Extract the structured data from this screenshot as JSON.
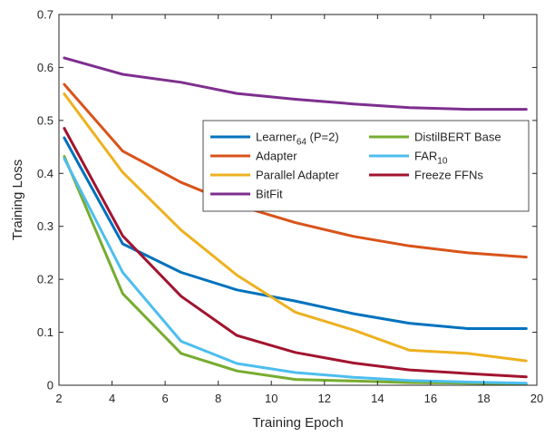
{
  "chart_data": {
    "type": "line",
    "xlabel": "Training Epoch",
    "ylabel": "Training Loss",
    "xlim": [
      2,
      20
    ],
    "ylim": [
      0,
      0.7
    ],
    "xticks": [
      "2",
      "4",
      "6",
      "8",
      "10",
      "12",
      "14",
      "16",
      "18",
      "20"
    ],
    "yticks": [
      "0",
      "0.1",
      "0.2",
      "0.3",
      "0.4",
      "0.5",
      "0.6",
      "0.7"
    ],
    "grid": false,
    "legend_position": "center-right",
    "series": [
      {
        "name": "Learner",
        "name_sub": "64",
        "name_suffix": " (P=2)",
        "color": "#0072BD",
        "x": [
          2.2,
          4.4,
          6.6,
          8.7,
          10.9,
          13.1,
          15.2,
          17.4,
          19.6
        ],
        "y": [
          0.467,
          0.267,
          0.213,
          0.18,
          0.159,
          0.135,
          0.117,
          0.107,
          0.107
        ]
      },
      {
        "name": "DistilBERT Base",
        "color": "#77AC30",
        "x": [
          2.2,
          4.4,
          6.6,
          8.7,
          10.9,
          13.1,
          15.2,
          17.4,
          19.6
        ],
        "y": [
          0.432,
          0.173,
          0.06,
          0.027,
          0.011,
          0.008,
          0.005,
          0.004,
          0.002
        ]
      },
      {
        "name": "Adapter",
        "color": "#D95319",
        "x": [
          2.2,
          4.4,
          6.6,
          8.7,
          10.9,
          13.1,
          15.2,
          17.4,
          19.6
        ],
        "y": [
          0.568,
          0.442,
          0.383,
          0.34,
          0.307,
          0.281,
          0.263,
          0.25,
          0.242
        ]
      },
      {
        "name": "FAR",
        "name_sub": "10",
        "color": "#4DBEEE",
        "x": [
          2.2,
          4.4,
          6.6,
          8.7,
          10.9,
          13.1,
          15.2,
          17.4,
          19.6
        ],
        "y": [
          0.428,
          0.213,
          0.083,
          0.041,
          0.024,
          0.015,
          0.009,
          0.006,
          0.004
        ]
      },
      {
        "name": "Parallel Adapter",
        "color": "#EDB120",
        "x": [
          2.2,
          4.4,
          6.6,
          8.7,
          10.9,
          13.1,
          15.2,
          17.4,
          19.6
        ],
        "y": [
          0.55,
          0.402,
          0.293,
          0.208,
          0.138,
          0.104,
          0.066,
          0.06,
          0.046
        ]
      },
      {
        "name": "Freeze FFNs",
        "color": "#A2142F",
        "x": [
          2.2,
          4.4,
          6.6,
          8.7,
          10.9,
          13.1,
          15.2,
          17.4,
          19.6
        ],
        "y": [
          0.485,
          0.282,
          0.168,
          0.094,
          0.062,
          0.042,
          0.029,
          0.022,
          0.016
        ]
      },
      {
        "name": "BitFit",
        "color": "#7E2F8E",
        "x": [
          2.2,
          4.4,
          6.6,
          8.7,
          10.9,
          13.1,
          15.2,
          17.4,
          19.6
        ],
        "y": [
          0.618,
          0.587,
          0.572,
          0.551,
          0.54,
          0.531,
          0.524,
          0.521,
          0.521
        ]
      }
    ]
  }
}
